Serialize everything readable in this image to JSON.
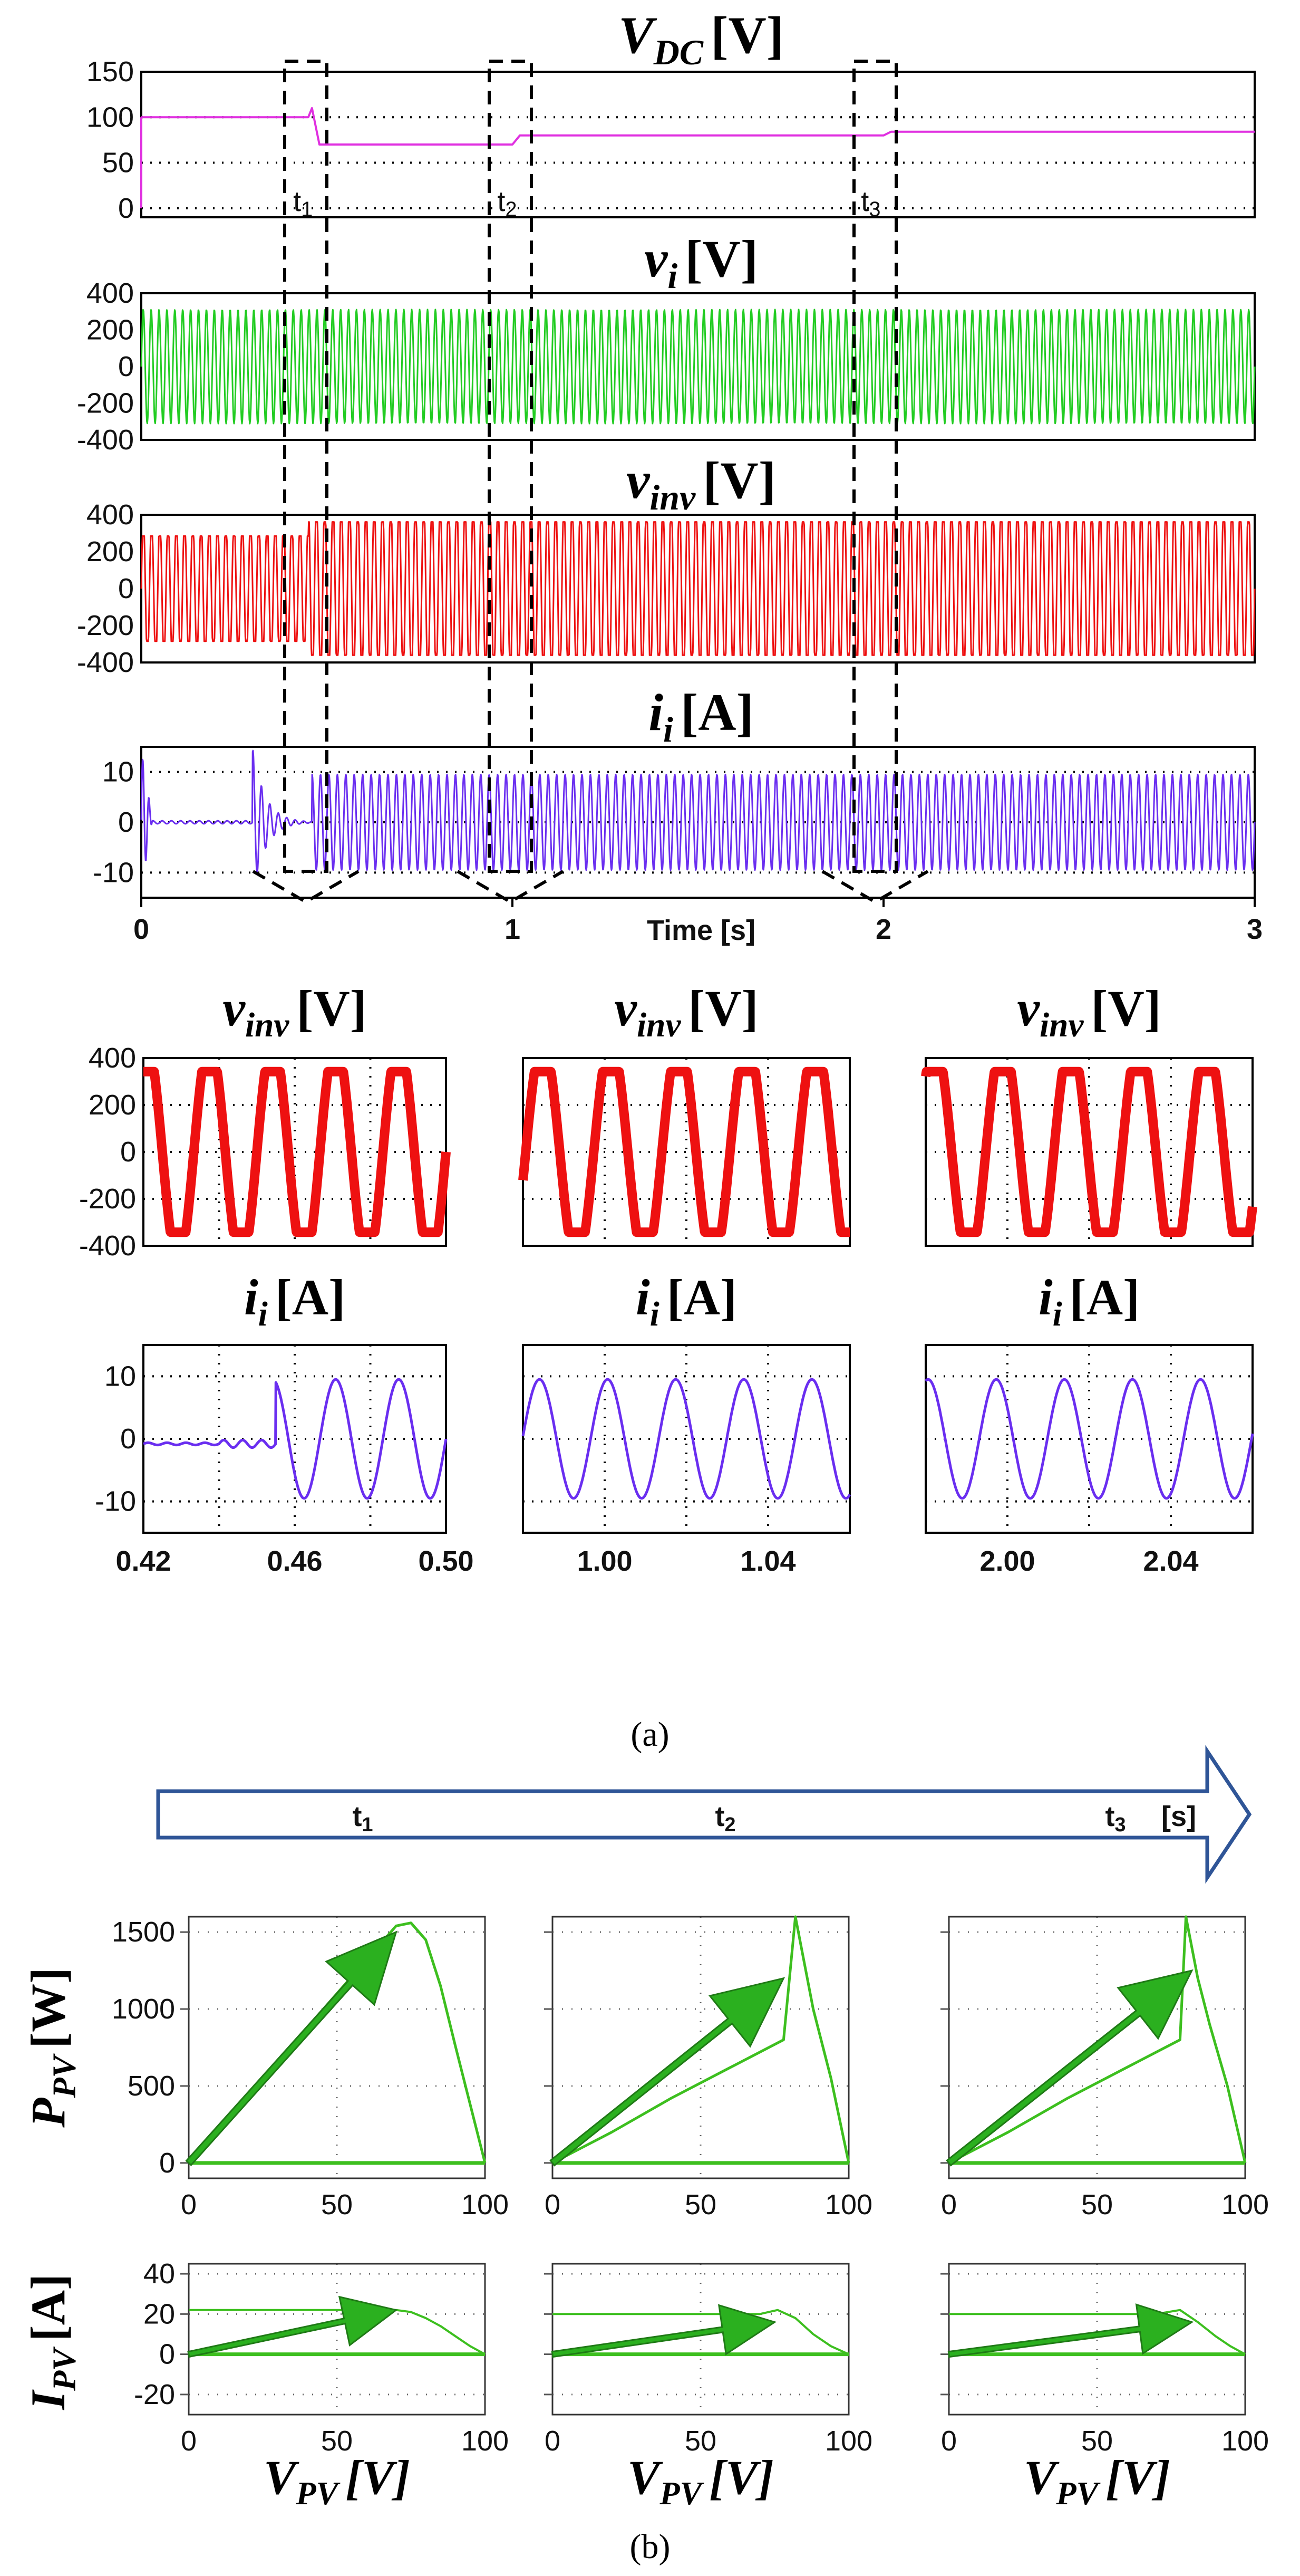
{
  "figure": {
    "panel_a_label": "(a)",
    "panel_b_label": "(b)",
    "time_axis_label": "Time [s]",
    "event_labels": [
      "t1",
      "t2",
      "t3"
    ],
    "arrow_labels": [
      "t1",
      "t2",
      "t3",
      "[s]"
    ],
    "colors": {
      "vdc": "#e030e0",
      "vi": "#22cc22",
      "vinv": "#ee1111",
      "ii": "#6a2ef0",
      "pv": "#3dbf1f",
      "arrow_outline": "#2f5597"
    }
  },
  "chart_data": [
    {
      "id": "vdc",
      "type": "line",
      "title": "V",
      "title_sub": "DC",
      "title_unit": "[V]",
      "xlim": [
        0,
        3
      ],
      "ylim": [
        -10,
        150
      ],
      "yticks": [
        "150",
        "100",
        "50",
        "0"
      ],
      "series": [
        {
          "name": "VDC",
          "x": [
            0,
            0.45,
            0.46,
            0.48,
            1.0,
            1.02,
            2.0,
            2.02,
            3.0
          ],
          "y": [
            100,
            100,
            110,
            70,
            70,
            80,
            80,
            84,
            84
          ]
        }
      ]
    },
    {
      "id": "vi",
      "type": "line",
      "title": "v",
      "title_sub": "i",
      "title_unit": "[V]",
      "xlim": [
        0,
        3
      ],
      "ylim": [
        -400,
        400
      ],
      "yticks": [
        "400",
        "200",
        "0",
        "-200",
        "-400"
      ],
      "series": [
        {
          "name": "vi",
          "amplitude": 311,
          "frequency_hz": 60
        }
      ]
    },
    {
      "id": "vinv",
      "type": "line",
      "title": "v",
      "title_sub": "inv",
      "title_unit": "[V]",
      "xlim": [
        0,
        3
      ],
      "ylim": [
        -400,
        400
      ],
      "yticks": [
        "400",
        "200",
        "0",
        "-200",
        "-400"
      ],
      "series": [
        {
          "name": "vinv",
          "amplitude_before": 300,
          "amplitude_after": 380,
          "step_time": 0.45
        }
      ]
    },
    {
      "id": "ii",
      "type": "line",
      "title": "i",
      "title_sub": "i",
      "title_unit": "[A]",
      "xlim": [
        0,
        3
      ],
      "ylim": [
        -15,
        15
      ],
      "yticks": [
        "10",
        "0",
        "-10"
      ],
      "xticks": [
        "0",
        "1",
        "2",
        "3"
      ],
      "series": [
        {
          "name": "ii",
          "amplitude": 9.5,
          "start_time": 0.46
        }
      ]
    },
    {
      "id": "zoom",
      "type": "line",
      "row_titles": [
        {
          "title": "v",
          "sub": "inv",
          "unit": "[V]"
        },
        {
          "title": "i",
          "sub": "i",
          "unit": "[A]"
        }
      ],
      "vinv_yticks": [
        "400",
        "200",
        "0",
        "-200",
        "-400"
      ],
      "ii_yticks": [
        "10",
        "0",
        "-10"
      ],
      "windows": [
        {
          "xlim": [
            0.42,
            0.5
          ],
          "xticks": [
            "0.42",
            "0.46",
            "0.50"
          ]
        },
        {
          "xlim": [
            0.98,
            1.06
          ],
          "xticks": [
            "1.00",
            "1.04"
          ]
        },
        {
          "xlim": [
            1.98,
            2.06
          ],
          "xticks": [
            "2.00",
            "2.04"
          ]
        }
      ]
    },
    {
      "id": "ppv",
      "type": "line",
      "ylabel": "P",
      "ylabel_sub": "PV",
      "ylabel_unit": "[W]",
      "xlim": [
        0,
        100
      ],
      "ylim": [
        -100,
        1600
      ],
      "yticks": [
        "1500",
        "1000",
        "500",
        "0"
      ],
      "xticks": [
        "0",
        "50",
        "100"
      ],
      "series": [
        {
          "name": "PV curve t1",
          "x": [
            0,
            10,
            20,
            30,
            40,
            50,
            60,
            70,
            75,
            80,
            85,
            90,
            95,
            100
          ],
          "y": [
            0,
            220,
            440,
            660,
            880,
            1100,
            1320,
            1540,
            1560,
            1450,
            1150,
            760,
            380,
            0
          ]
        },
        {
          "name": "PV curve t2",
          "x": [
            0,
            20,
            40,
            60,
            78,
            82,
            88,
            94,
            100
          ],
          "y": [
            0,
            200,
            420,
            620,
            800,
            1600,
            1000,
            550,
            0
          ]
        },
        {
          "name": "PV curve t3",
          "x": [
            0,
            20,
            40,
            60,
            78,
            80,
            84,
            88,
            94,
            100
          ],
          "y": [
            0,
            200,
            420,
            620,
            800,
            1600,
            1200,
            900,
            500,
            0
          ]
        }
      ]
    },
    {
      "id": "ipv",
      "type": "line",
      "ylabel": "I",
      "ylabel_sub": "PV",
      "ylabel_unit": "[A]",
      "xlabel": "V",
      "xlabel_sub": "PV",
      "xlabel_unit": "[V]",
      "xlim": [
        0,
        100
      ],
      "ylim": [
        -30,
        45
      ],
      "yticks": [
        "40",
        "20",
        "0",
        "-20"
      ],
      "xticks": [
        "0",
        "50",
        "100"
      ],
      "series": [
        {
          "name": "IV curve t1",
          "x": [
            0,
            60,
            70,
            75,
            80,
            85,
            90,
            95,
            100
          ],
          "y": [
            22,
            22,
            22,
            21,
            18,
            14,
            9,
            4,
            0
          ]
        },
        {
          "name": "IV curve t2",
          "x": [
            0,
            70,
            76,
            82,
            88,
            94,
            100
          ],
          "y": [
            20,
            20,
            22,
            18,
            10,
            4,
            0
          ]
        },
        {
          "name": "IV curve t3",
          "x": [
            0,
            70,
            78,
            84,
            90,
            95,
            100
          ],
          "y": [
            20,
            20,
            22,
            16,
            9,
            4,
            0
          ]
        }
      ]
    }
  ]
}
